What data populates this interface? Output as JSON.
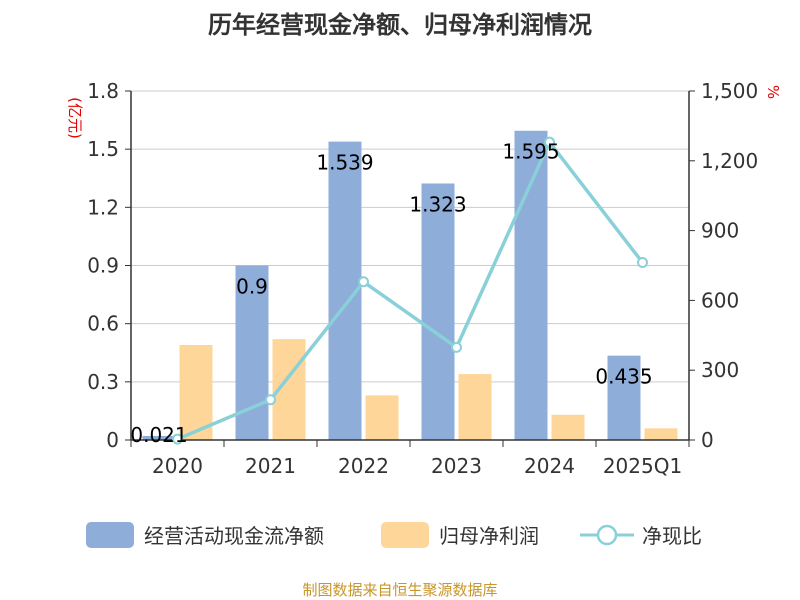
{
  "chart_data": {
    "type": "bar",
    "title": "历年经营现金净额、归母净利润情况",
    "categories": [
      "2020",
      "2021",
      "2022",
      "2023",
      "2024",
      "2025Q1"
    ],
    "series": [
      {
        "name": "经营活动现金流净额",
        "kind": "bar",
        "axis": "left",
        "color": "#8eadd9",
        "values": [
          0.021,
          0.9,
          1.539,
          1.323,
          1.595,
          0.435
        ],
        "data_labels": [
          "0.021",
          "0.9",
          "1.539",
          "1.323",
          "1.595",
          "0.435"
        ]
      },
      {
        "name": "归母净利润",
        "kind": "bar",
        "axis": "left",
        "color": "#ffd699",
        "values": [
          0.49,
          0.52,
          0.23,
          0.34,
          0.13,
          0.06
        ]
      },
      {
        "name": "净现比",
        "kind": "line",
        "axis": "right",
        "color": "#89d0d8",
        "values": [
          4,
          173,
          680,
          398,
          1280,
          763
        ]
      }
    ],
    "y_left": {
      "unit": "(亿元)",
      "ylim": [
        0,
        1.8
      ],
      "ticks": [
        "0",
        "0.3",
        "0.6",
        "0.9",
        "1.2",
        "1.5",
        "1.8"
      ]
    },
    "y_right": {
      "unit": "%",
      "ylim": [
        0,
        1500
      ],
      "ticks": [
        "0",
        "300",
        "600",
        "900",
        "1,200",
        "1,500"
      ]
    },
    "grid": true,
    "legend_position": "bottom"
  },
  "legend": {
    "items": [
      "经营活动现金流净额",
      "归母净利润",
      "净现比"
    ]
  },
  "source": "制图数据来自恒生聚源数据库"
}
